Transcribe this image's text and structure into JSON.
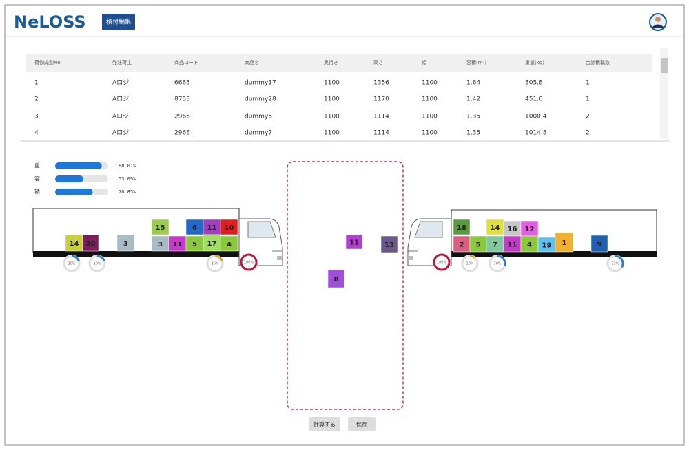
{
  "header": {
    "logo": "NeLOSS",
    "mode_button": "積付編集"
  },
  "table": {
    "columns": [
      "荷物識別No.",
      "発注荷主",
      "商品コード",
      "商品名",
      "奥行き",
      "高さ",
      "幅",
      "容積(m³)",
      "重量(kg)",
      "合計積載数"
    ],
    "rows": [
      [
        "1",
        "Aロジ",
        "6665",
        "dummy17",
        "1100",
        "1356",
        "1100",
        "1.64",
        "305.8",
        "1"
      ],
      [
        "2",
        "Aロジ",
        "8753",
        "dummy28",
        "1100",
        "1170",
        "1100",
        "1.42",
        "451.6",
        "1"
      ],
      [
        "3",
        "Aロジ",
        "2966",
        "dummy6",
        "1100",
        "1114",
        "1100",
        "1.35",
        "1000.4",
        "2"
      ],
      [
        "4",
        "Aロジ",
        "2968",
        "dummy7",
        "1100",
        "1114",
        "1100",
        "1.35",
        "1014.8",
        "2"
      ]
    ]
  },
  "gauges": [
    {
      "label": "重",
      "value": 88.01,
      "value_label": "88.01%"
    },
    {
      "label": "容",
      "value": 53.09,
      "value_label": "53.09%"
    },
    {
      "label": "積",
      "value": 70.85,
      "value_label": "70.85%"
    }
  ],
  "trucks": [
    {
      "boxes": [
        {
          "label": "14",
          "color": "#c9cf3c"
        },
        {
          "label": "20",
          "color": "#7a1f5c"
        },
        {
          "label": "3",
          "color": "#a9bcc4"
        },
        {
          "label": "15",
          "color": "#9ccc4c"
        },
        {
          "label": "3",
          "color": "#a9bcc4"
        },
        {
          "label": "11",
          "color": "#c23cc8"
        },
        {
          "label": "6",
          "color": "#2468c8"
        },
        {
          "label": "5",
          "color": "#8cc83c"
        },
        {
          "label": "11",
          "color": "#a040c0"
        },
        {
          "label": "17",
          "color": "#a0e060"
        },
        {
          "label": "10",
          "color": "#e02020"
        },
        {
          "label": "4",
          "color": "#8cc83c"
        }
      ],
      "indicators": [
        {
          "value": 20,
          "label": "20%",
          "color": "#2a7fd4"
        },
        {
          "value": 20,
          "label": "20%",
          "color": "#2a7fd4"
        },
        {
          "value": 20,
          "label": "20%",
          "color": "#e0a030"
        },
        {
          "value": 100,
          "label": "100%",
          "color": "#c0143c"
        }
      ]
    },
    {
      "boxes": [
        {
          "label": "18",
          "color": "#5a9a3c"
        },
        {
          "label": "2",
          "color": "#d86080"
        },
        {
          "label": "5",
          "color": "#8cc83c"
        },
        {
          "label": "14",
          "color": "#e0e040"
        },
        {
          "label": "7",
          "color": "#80c8a0"
        },
        {
          "label": "16",
          "color": "#c8c8c8"
        },
        {
          "label": "11",
          "color": "#c23cc8"
        },
        {
          "label": "12",
          "color": "#e060e0"
        },
        {
          "label": "4",
          "color": "#8cc83c"
        },
        {
          "label": "19",
          "color": "#60c0f0"
        },
        {
          "label": "1",
          "color": "#f0b030"
        },
        {
          "label": "9",
          "color": "#2060b0"
        }
      ],
      "indicators": [
        {
          "value": 100,
          "label": "100%",
          "color": "#c0143c"
        },
        {
          "value": 10,
          "label": "10%",
          "color": "#e0a030"
        },
        {
          "value": 30,
          "label": "30%",
          "color": "#2a7fd4"
        },
        {
          "value": 33,
          "label": "33%",
          "color": "#2a7fd4"
        }
      ]
    }
  ],
  "loose_boxes": [
    {
      "label": "11",
      "color": "#b040d0"
    },
    {
      "label": "13",
      "color": "#6a5a8c"
    },
    {
      "label": "8",
      "color": "#a050d8"
    }
  ],
  "buttons": {
    "calculate": "計算する",
    "save": "保存"
  }
}
